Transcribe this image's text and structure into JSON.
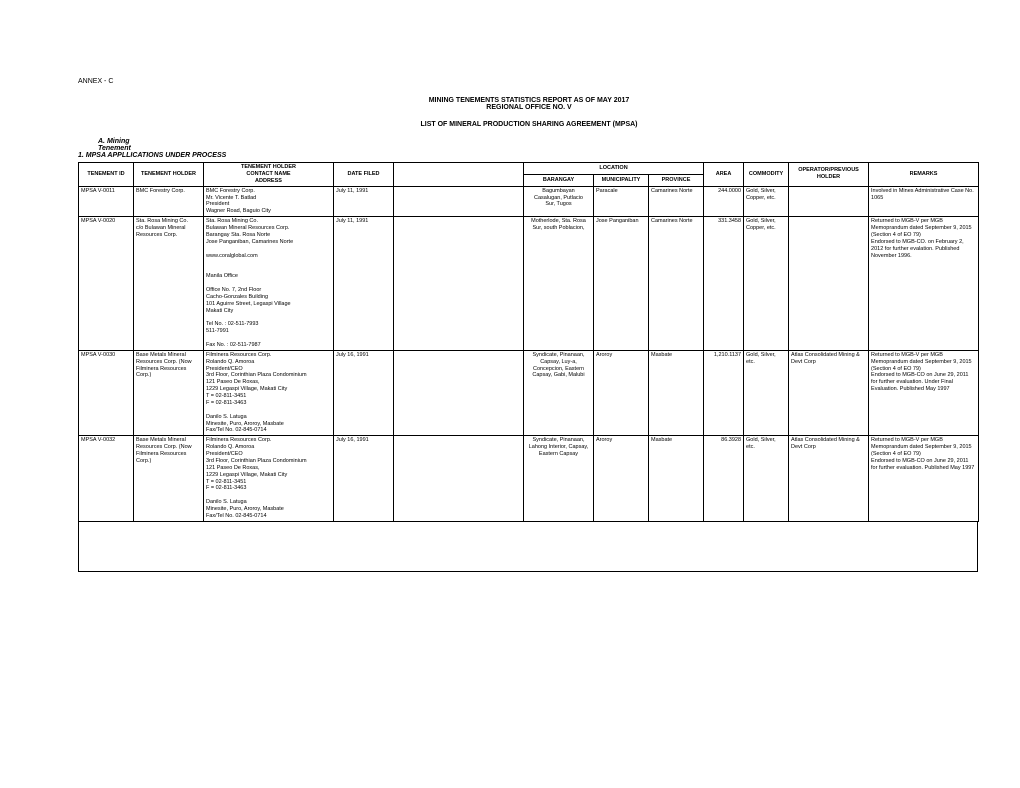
{
  "annex": "ANNEX - C",
  "title1": "MINING TENEMENTS STATISTICS REPORT AS OF MAY 2017",
  "title2": "REGIONAL OFFICE NO. V",
  "subtitle": "LIST OF MINERAL PRODUCTION SHARING AGREEMENT (MPSA)",
  "sectionA1": "A.  Mining",
  "sectionA2": "Tenement",
  "section1": "1.  MPSA APPLLICATIONS UNDER PROCESS",
  "headers": {
    "tid": "TENEMENT ID",
    "holder": "TENEMENT HOLDER",
    "contact1": "TENEMENT HOLDER",
    "contact2": "CONTACT NAME",
    "contact3": "ADDRESS",
    "date": "DATE FILED",
    "location": "LOCATION",
    "bgy": "BARANGAY",
    "mun": "MUNICIPALITY",
    "prov": "PROVINCE",
    "area": "AREA",
    "comm": "COMMODITY",
    "op": "OPERATOR/PREVIOUS HOLDER",
    "rem": "REMARKS"
  },
  "rows": [
    {
      "tid": "MPSA V-0011",
      "holder": "BMC Forestry Corp.",
      "contact": "BMC Forestry Corp.\nMr.  Vicente T. Batlad\nPresident\nWagner Road, Baguio City",
      "date": "July 11, 1991",
      "bgy": "Bagumbayan\nCasalugan, Putlacio\nSur, Tugos",
      "mun": "Paracale",
      "prov": "Camarines Norte",
      "area": "244.0000",
      "comm": "Gold, Silver, Copper, etc.",
      "op": "",
      "rem": "Involved in Mines Administrative Case No. 1065"
    },
    {
      "tid": "MPSA V-0020",
      "holder": "Sta. Rosa Mining Co.\nc/o Bulawan Mineral Resources Corp.",
      "contact": "Sta. Rosa Mining Co.\nBulawan Mineral Resources Corp.\nBarangay Sta. Rosa Norte\nJose Panganiban, Camarines Norte\n\nwww.coralglobal.com\n\n\nManila Office\n\nOffice No. 7, 2nd Floor\nCacho-Gonzales Building\n101 Aguirre Street, Legaspi Village\nMakati City\n\nTel No. :   02-511-7993\n                 511-7991\n\nFax No. :  02-511-7987",
      "date": "July 11, 1991",
      "bgy": "Motherlode, Sta. Rosa Sur, south Poblacion,",
      "mun": "Jose Panganiban",
      "prov": "Camarines Norte",
      "area": "331.3458",
      "comm": "Gold, Silver, Copper, etc.",
      "op": "",
      "rem": "Returned to MGB-V per MGB Memoprandum dated September 9, 2015 (Section 4 of EO 79)\nEndorsed to MGB-CO. on February 2, 2012 for further evalation. Published November 1996."
    },
    {
      "tid": "MPSA V-0030",
      "holder": "Base Metals Mineral Resources Corp. (Now Filminera Resources Corp.)",
      "contact": "Filminera Resources Corp.\nRolando Q. Amoroa\nPresident/CEO\n3rd Floor, Corinthian Plaza Condominium\n121 Paseo De Roxas,\n1229 Legaspi Village, Makati City\nT = 02-811-3451\nF = 02-811-3463\n\nDanilo S. Latuga\nMinesite, Puro, Aroroy, Masbate\nFax/Tel No. 02-845-0714",
      "date": "July 16, 1991",
      "bgy": "Syndicate, Pinanaan, Capsay, Luy-a, Concepcion, Eastern Capsay, Gabi, Malubi",
      "mun": "Aroroy",
      "prov": "Masbate",
      "area": "1,210.1137",
      "comm": "Gold, Silver, etc.",
      "op": "Atlas Consolidated Mining & Devt Corp",
      "rem": "Returned to MGB-V per MGB Memoprandum dated September 9, 2015 (Section 4 of EO 79)\nEndorsed to MGB-CO on June 29, 2011 for further evaluation. Under Final Evaluation.  Published May 1997"
    },
    {
      "tid": "MPSA V-0032",
      "holder": "Base Metals Mineral Resources Corp. (Now Filminera Resources Corp.)",
      "contact": "Filminera Resources Corp.\nRolando Q. Amoroa\nPresident/CEO\n3rd Floor, Corinthian Plaza Condominium\n121 Paseo De Roxas,\n1229 Legaspi Village, Makati City\nT = 02-811-3451\nF = 02-811-3463\n\nDanilo S. Latuga\nMinesite, Puro, Aroroy, Masbate\nFax/Tel No. 02-845-0714",
      "date": "July 16, 1991",
      "bgy": "Syndicate, Pinanaan, Lahong Interior, Capsay, Eastern Capsay",
      "mun": "Aroroy",
      "prov": "Masbate",
      "area": "86.3928",
      "comm": "Gold, Silver, etc.",
      "op": "Atlas Consolidated Mining & Devt Corp",
      "rem": "Returned to MGB-V per MGB Memoprandum dated September 9, 2015 (Section 4 of EO 79)\nEndorsed to MGB-CO on June 29, 2011 for further evaluation. Published May 1997"
    }
  ]
}
